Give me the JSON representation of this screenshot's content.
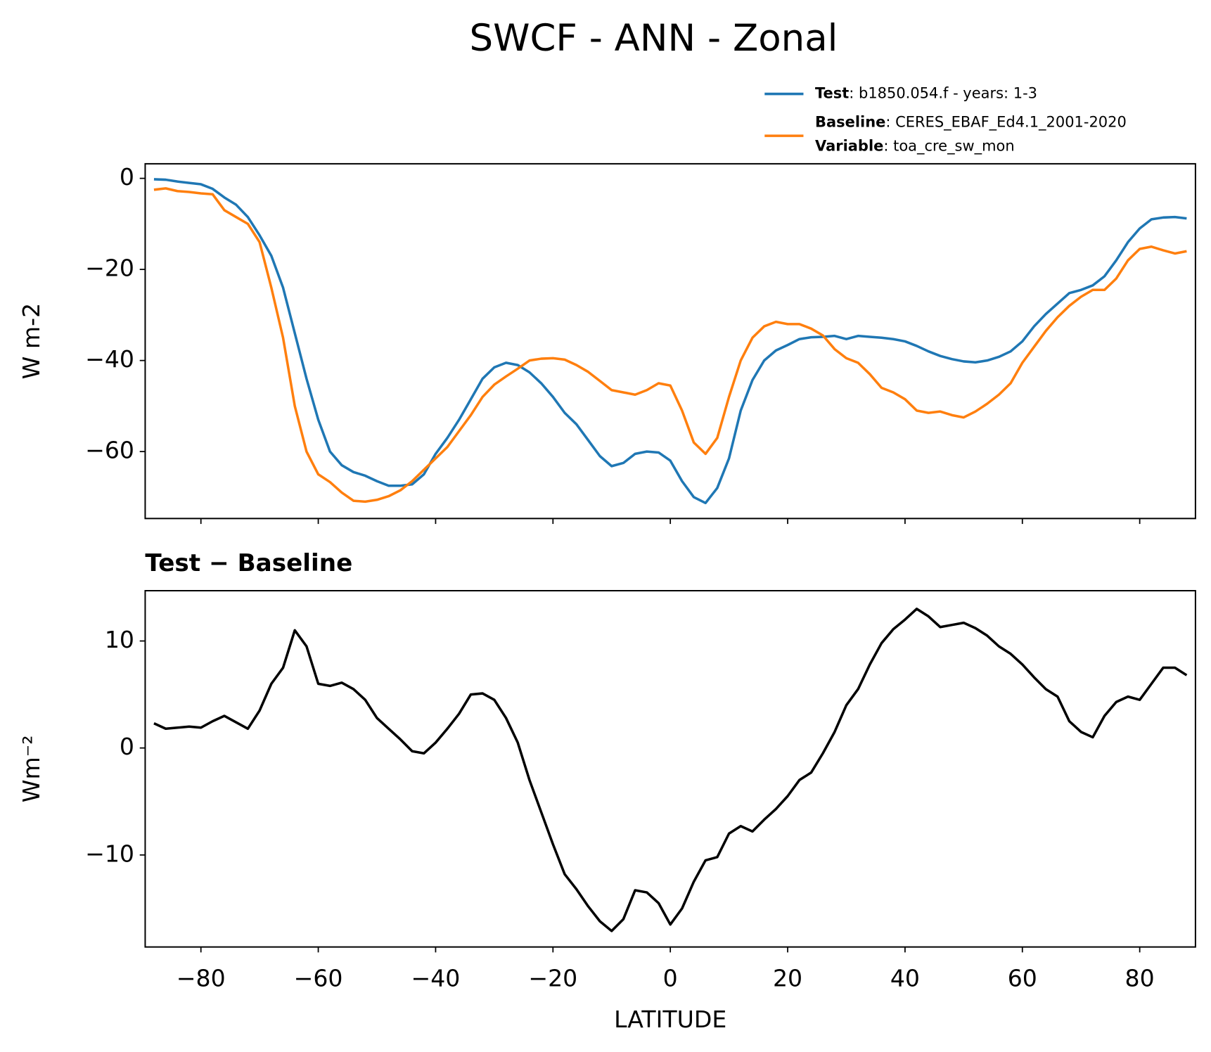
{
  "chart_data": [
    {
      "type": "line",
      "suptitle": "SWCF - ANN - Zonal",
      "ylabel": "W m-2",
      "xlim": [
        -89.5,
        89.5
      ],
      "xticks": [
        -80,
        -60,
        -40,
        -20,
        0,
        20,
        40,
        60,
        80
      ],
      "show_xticklabels": false,
      "ylim": [
        -74.7,
        3.2
      ],
      "yticks": [
        0,
        {
          "value": -20,
          "label": "−20"
        },
        {
          "value": -40,
          "label": "−40"
        },
        {
          "value": -60,
          "label": "−60"
        }
      ],
      "x": [
        -88,
        -86,
        -84,
        -82,
        -80,
        -78,
        -76,
        -74,
        -72,
        -70,
        -68,
        -66,
        -64,
        -62,
        -60,
        -58,
        -56,
        -54,
        -52,
        -50,
        -48,
        -46,
        -44,
        -42,
        -40,
        -38,
        -36,
        -34,
        -32,
        -30,
        -28,
        -26,
        -24,
        -22,
        -20,
        -18,
        -16,
        -14,
        -12,
        -10,
        -8,
        -6,
        -4,
        -2,
        0,
        2,
        4,
        6,
        8,
        10,
        12,
        14,
        16,
        18,
        20,
        22,
        24,
        26,
        28,
        30,
        32,
        34,
        36,
        38,
        40,
        42,
        44,
        46,
        48,
        50,
        52,
        54,
        56,
        58,
        60,
        62,
        64,
        66,
        68,
        70,
        72,
        74,
        76,
        78,
        80,
        82,
        84,
        86,
        88
      ],
      "series": [
        {
          "name": "Test",
          "label": ": b1850.054.f - years: 1-3",
          "color": "#1f77b4",
          "values": [
            -0.2,
            -0.3,
            -0.7,
            -1.0,
            -1.3,
            -2.3,
            -4.2,
            -5.8,
            -8.5,
            -12.5,
            -17,
            -24,
            -34,
            -44,
            -53,
            -60,
            -63,
            -64.5,
            -65.3,
            -66.5,
            -67.5,
            -67.5,
            -67.2,
            -65,
            -60.5,
            -57,
            -53,
            -48.5,
            -44,
            -41.5,
            -40.5,
            -41,
            -42.6,
            -45,
            -48,
            -51.5,
            -54,
            -57.5,
            -61,
            -63.2,
            -62.5,
            -60.5,
            -60,
            -60.2,
            -62,
            -66.5,
            -70,
            -71.3,
            -68,
            -61.5,
            -51,
            -44.3,
            -40,
            -37.8,
            -36.6,
            -35.3,
            -34.9,
            -34.8,
            -34.6,
            -35.3,
            -34.6,
            -34.8,
            -35,
            -35.3,
            -35.8,
            -36.8,
            -38,
            -39,
            -39.7,
            -40.2,
            -40.4,
            -40,
            -39.2,
            -38,
            -35.8,
            -32.5,
            -29.8,
            -27.5,
            -25.2,
            -24.5,
            -23.5,
            -21.5,
            -18,
            -14,
            -11,
            -9,
            -8.6,
            -8.5,
            -8.8
          ]
        },
        {
          "name": "Baseline",
          "label": ": CERES_EBAF_Ed4.1_2001-2020",
          "color": "#ff7f0e",
          "values": [
            -2.5,
            -2.2,
            -2.8,
            -3.0,
            -3.3,
            -3.5,
            -7,
            -8.5,
            -10,
            -14,
            -24,
            -35,
            -50,
            -60,
            -65,
            -66.7,
            -69,
            -70.8,
            -71,
            -70.6,
            -69.8,
            -68.5,
            -66.5,
            -64,
            -61.5,
            -59,
            -55.5,
            -52,
            -48,
            -45.3,
            -43.5,
            -41.8,
            -40,
            -39.6,
            -39.5,
            -39.8,
            -41,
            -42.5,
            -44.5,
            -46.5,
            -47,
            -47.5,
            -46.5,
            -45,
            -45.5,
            -51,
            -58,
            -60.5,
            -57,
            -48,
            -40,
            -35,
            -32.5,
            -31.5,
            -32,
            -32,
            -33,
            -34.5,
            -37.5,
            -39.5,
            -40.5,
            -43,
            -46,
            -47,
            -48.5,
            -51,
            -51.5,
            -51.2,
            -52,
            -52.5,
            -51.2,
            -49.5,
            -47.5,
            -45,
            -40.5,
            -37,
            -33.5,
            -30.5,
            -28,
            -26,
            -24.5,
            -24.5,
            -22,
            -18,
            -15.5,
            -15,
            -15.8,
            -16.5,
            -16
          ]
        }
      ],
      "variable": {
        "name": "Variable",
        "label": ": toa_cre_sw_mon"
      }
    },
    {
      "type": "line",
      "title": "Test − Baseline",
      "xlabel": "LATITUDE",
      "ylabel": "Wm⁻²",
      "xlim": [
        -89.5,
        89.5
      ],
      "xticks": [
        {
          "value": -80,
          "label": "−80"
        },
        {
          "value": -60,
          "label": "−60"
        },
        {
          "value": -40,
          "label": "−40"
        },
        {
          "value": -20,
          "label": "−20"
        },
        0,
        20,
        40,
        60,
        80
      ],
      "show_xticklabels": true,
      "ylim": [
        -18.6,
        14.7
      ],
      "yticks": [
        10,
        0,
        {
          "value": -10,
          "label": "−10"
        }
      ],
      "x": [
        -88,
        -86,
        -84,
        -82,
        -80,
        -78,
        -76,
        -74,
        -72,
        -70,
        -68,
        -66,
        -64,
        -62,
        -60,
        -58,
        -56,
        -54,
        -52,
        -50,
        -48,
        -46,
        -44,
        -42,
        -40,
        -38,
        -36,
        -34,
        -32,
        -30,
        -28,
        -26,
        -24,
        -22,
        -20,
        -18,
        -16,
        -14,
        -12,
        -10,
        -8,
        -6,
        -4,
        -2,
        0,
        2,
        4,
        6,
        8,
        10,
        12,
        14,
        16,
        18,
        20,
        22,
        24,
        26,
        28,
        30,
        32,
        34,
        36,
        38,
        40,
        42,
        44,
        46,
        48,
        50,
        52,
        54,
        56,
        58,
        60,
        62,
        64,
        66,
        68,
        70,
        72,
        74,
        76,
        78,
        80,
        82,
        84,
        86,
        88
      ],
      "series": [
        {
          "color": "#000000",
          "values": [
            2.3,
            1.8,
            1.9,
            2.0,
            1.9,
            2.5,
            3.0,
            2.4,
            1.8,
            3.5,
            6.0,
            7.5,
            11.0,
            9.5,
            6.0,
            5.8,
            6.1,
            5.5,
            4.5,
            2.8,
            1.8,
            0.8,
            -0.3,
            -0.5,
            0.5,
            1.8,
            3.2,
            5.0,
            5.1,
            4.5,
            2.8,
            0.5,
            -3.0,
            -6.0,
            -9.0,
            -11.8,
            -13.2,
            -14.8,
            -16.2,
            -17.1,
            -16.0,
            -13.3,
            -13.5,
            -14.5,
            -16.5,
            -15.0,
            -12.5,
            -10.5,
            -10.2,
            -8.0,
            -7.3,
            -7.8,
            -6.7,
            -5.7,
            -4.5,
            -3.0,
            -2.3,
            -0.5,
            1.5,
            4.0,
            5.5,
            7.8,
            9.8,
            11.1,
            12.0,
            13.0,
            12.3,
            11.3,
            11.5,
            11.7,
            11.2,
            10.5,
            9.5,
            8.8,
            7.8,
            6.6,
            5.5,
            4.8,
            2.5,
            1.5,
            1.0,
            3.0,
            4.3,
            4.8,
            4.5,
            6.0,
            7.5,
            7.5,
            6.8
          ]
        }
      ]
    }
  ]
}
